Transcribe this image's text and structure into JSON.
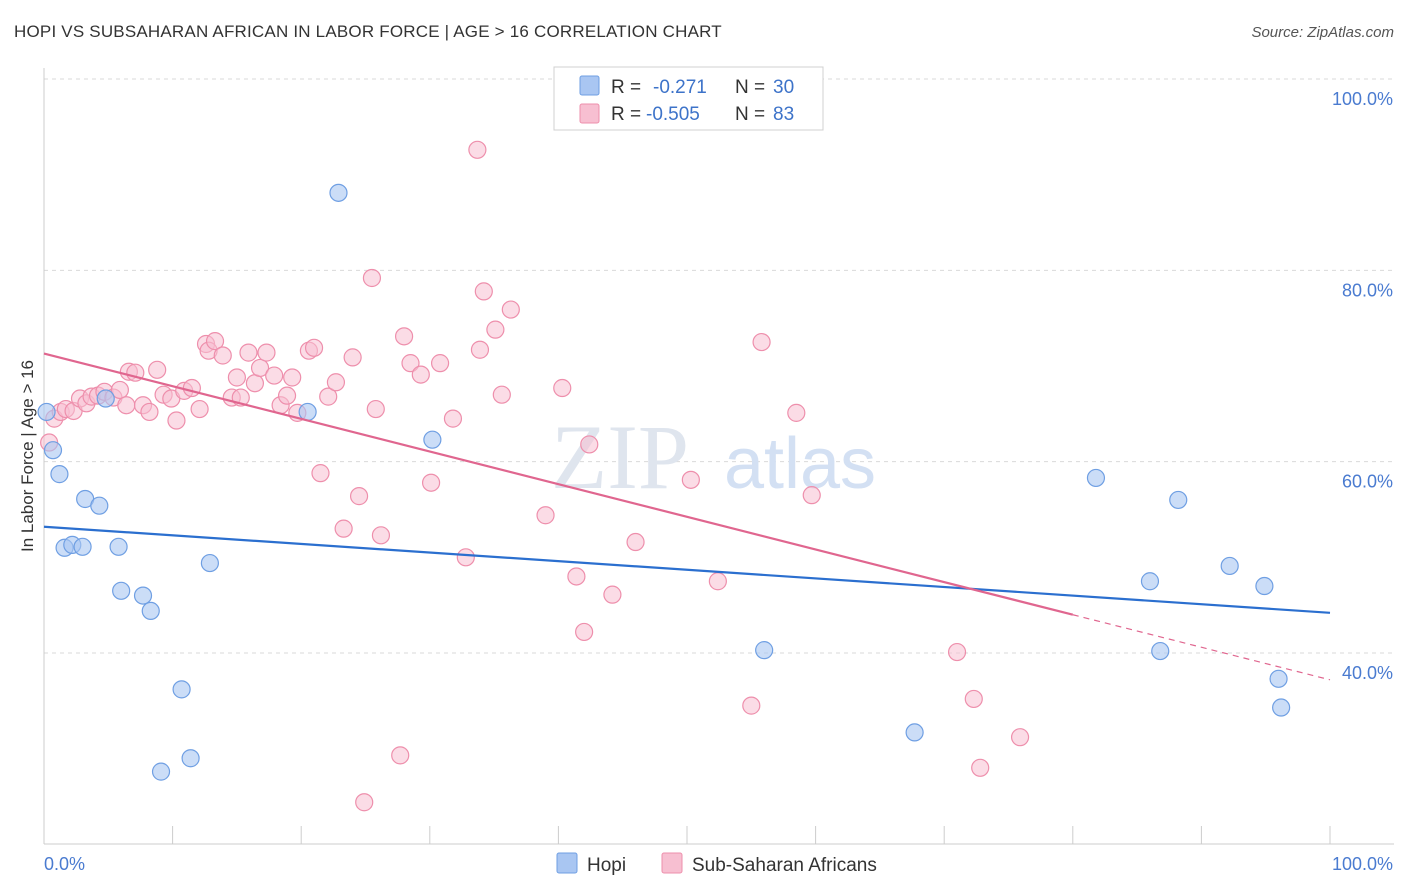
{
  "title": "HOPI VS SUBSAHARAN AFRICAN IN LABOR FORCE | AGE > 16 CORRELATION CHART",
  "source": "Source: ZipAtlas.com",
  "colors": {
    "hopi_fill": "#a9c6f2",
    "hopi_stroke": "#6f9fe3",
    "hopi_line": "#2b6fcf",
    "ssa_fill": "#f7bfd1",
    "ssa_stroke": "#ee8fac",
    "ssa_line": "#e0668f",
    "grid": "#d9d9d9",
    "axis_text": "#4a7bd0"
  },
  "legend": {
    "rows": [
      {
        "r_label": "R =",
        "r_value": "-0.271",
        "n_label": "N =",
        "n_value": "30"
      },
      {
        "r_label": "R =",
        "r_value": "-0.505",
        "n_label": "N =",
        "n_value": "83"
      }
    ]
  },
  "watermark": {
    "zip": "ZIP",
    "atlas": "atlas"
  },
  "chart_data": {
    "type": "scatter",
    "title": "HOPI VS SUBSAHARAN AFRICAN IN LABOR FORCE | AGE > 16 CORRELATION CHART",
    "xlabel": "",
    "ylabel": "In Labor Force | Age > 16",
    "xlim": [
      0,
      100
    ],
    "ylim": [
      18,
      102
    ],
    "y_ticks": [
      40,
      60,
      80,
      100
    ],
    "y_tick_labels": [
      "40.0%",
      "60.0%",
      "80.0%",
      "100.0%"
    ],
    "x_tick_labels": [
      "0.0%",
      "100.0%"
    ],
    "grid": true,
    "series": [
      {
        "name": "Hopi",
        "r": -0.271,
        "n": 30,
        "trend": {
          "x0": 0,
          "y0": 53.2,
          "x1": 100,
          "y1": 44.2
        },
        "points": [
          [
            0.2,
            65.2
          ],
          [
            0.7,
            61.2
          ],
          [
            1.2,
            58.7
          ],
          [
            1.6,
            51.0
          ],
          [
            2.2,
            51.3
          ],
          [
            3.0,
            51.1
          ],
          [
            3.2,
            56.1
          ],
          [
            4.3,
            55.4
          ],
          [
            4.8,
            66.6
          ],
          [
            5.8,
            51.1
          ],
          [
            6.0,
            46.5
          ],
          [
            7.7,
            46.0
          ],
          [
            8.3,
            44.4
          ],
          [
            9.1,
            27.6
          ],
          [
            10.7,
            36.2
          ],
          [
            11.4,
            29.0
          ],
          [
            12.9,
            49.4
          ],
          [
            20.5,
            65.2
          ],
          [
            22.9,
            88.1
          ],
          [
            30.2,
            62.3
          ],
          [
            56.0,
            40.3
          ],
          [
            67.7,
            31.7
          ],
          [
            81.8,
            58.3
          ],
          [
            86.0,
            47.5
          ],
          [
            86.8,
            40.2
          ],
          [
            88.2,
            56.0
          ],
          [
            92.2,
            49.1
          ],
          [
            94.9,
            47.0
          ],
          [
            96.0,
            37.3
          ],
          [
            96.2,
            34.3
          ]
        ]
      },
      {
        "name": "Sub-Saharan Africans",
        "r": -0.505,
        "n": 83,
        "trend": {
          "x0": 0,
          "y0": 71.3,
          "x1": 80,
          "y1": 44.0
        },
        "trend_dashed": {
          "x0": 80,
          "y0": 44.0,
          "x1": 100,
          "y1": 37.2
        },
        "points": [
          [
            0.4,
            62.0
          ],
          [
            0.8,
            64.5
          ],
          [
            1.3,
            65.2
          ],
          [
            1.7,
            65.5
          ],
          [
            2.3,
            65.3
          ],
          [
            2.8,
            66.6
          ],
          [
            3.3,
            66.1
          ],
          [
            3.7,
            66.8
          ],
          [
            4.2,
            66.9
          ],
          [
            4.7,
            67.3
          ],
          [
            5.4,
            66.7
          ],
          [
            5.9,
            67.5
          ],
          [
            6.4,
            65.9
          ],
          [
            6.6,
            69.4
          ],
          [
            7.1,
            69.3
          ],
          [
            7.7,
            65.9
          ],
          [
            8.2,
            65.2
          ],
          [
            8.8,
            69.6
          ],
          [
            9.3,
            67.0
          ],
          [
            9.9,
            66.6
          ],
          [
            10.3,
            64.3
          ],
          [
            10.9,
            67.4
          ],
          [
            11.5,
            67.7
          ],
          [
            12.1,
            65.5
          ],
          [
            12.6,
            72.3
          ],
          [
            12.8,
            71.6
          ],
          [
            13.3,
            72.6
          ],
          [
            13.9,
            71.1
          ],
          [
            14.6,
            66.7
          ],
          [
            15.0,
            68.8
          ],
          [
            15.3,
            66.7
          ],
          [
            15.9,
            71.4
          ],
          [
            16.4,
            68.2
          ],
          [
            16.8,
            69.8
          ],
          [
            17.3,
            71.4
          ],
          [
            17.9,
            69.0
          ],
          [
            18.4,
            65.9
          ],
          [
            18.9,
            66.9
          ],
          [
            19.3,
            68.8
          ],
          [
            19.7,
            65.1
          ],
          [
            20.6,
            71.6
          ],
          [
            21.0,
            71.9
          ],
          [
            21.5,
            58.8
          ],
          [
            22.1,
            66.8
          ],
          [
            22.7,
            68.3
          ],
          [
            23.3,
            53.0
          ],
          [
            24.0,
            70.9
          ],
          [
            24.5,
            56.4
          ],
          [
            24.9,
            24.4
          ],
          [
            25.5,
            79.2
          ],
          [
            25.8,
            65.5
          ],
          [
            26.2,
            52.3
          ],
          [
            27.7,
            29.3
          ],
          [
            28.0,
            73.1
          ],
          [
            28.5,
            70.3
          ],
          [
            29.3,
            69.1
          ],
          [
            30.1,
            57.8
          ],
          [
            30.8,
            70.3
          ],
          [
            31.8,
            64.5
          ],
          [
            32.8,
            50.0
          ],
          [
            33.7,
            92.6
          ],
          [
            33.9,
            71.7
          ],
          [
            34.2,
            77.8
          ],
          [
            35.1,
            73.8
          ],
          [
            35.6,
            67.0
          ],
          [
            36.3,
            75.9
          ],
          [
            39.0,
            54.4
          ],
          [
            40.3,
            67.7
          ],
          [
            41.4,
            48.0
          ],
          [
            42.0,
            42.2
          ],
          [
            42.4,
            61.8
          ],
          [
            44.2,
            46.1
          ],
          [
            46.0,
            51.6
          ],
          [
            50.3,
            58.1
          ],
          [
            52.4,
            47.5
          ],
          [
            55.0,
            34.5
          ],
          [
            55.8,
            72.5
          ],
          [
            58.5,
            65.1
          ],
          [
            59.7,
            56.5
          ],
          [
            71.0,
            40.1
          ],
          [
            72.3,
            35.2
          ],
          [
            72.8,
            28.0
          ],
          [
            75.9,
            31.2
          ]
        ]
      }
    ]
  }
}
